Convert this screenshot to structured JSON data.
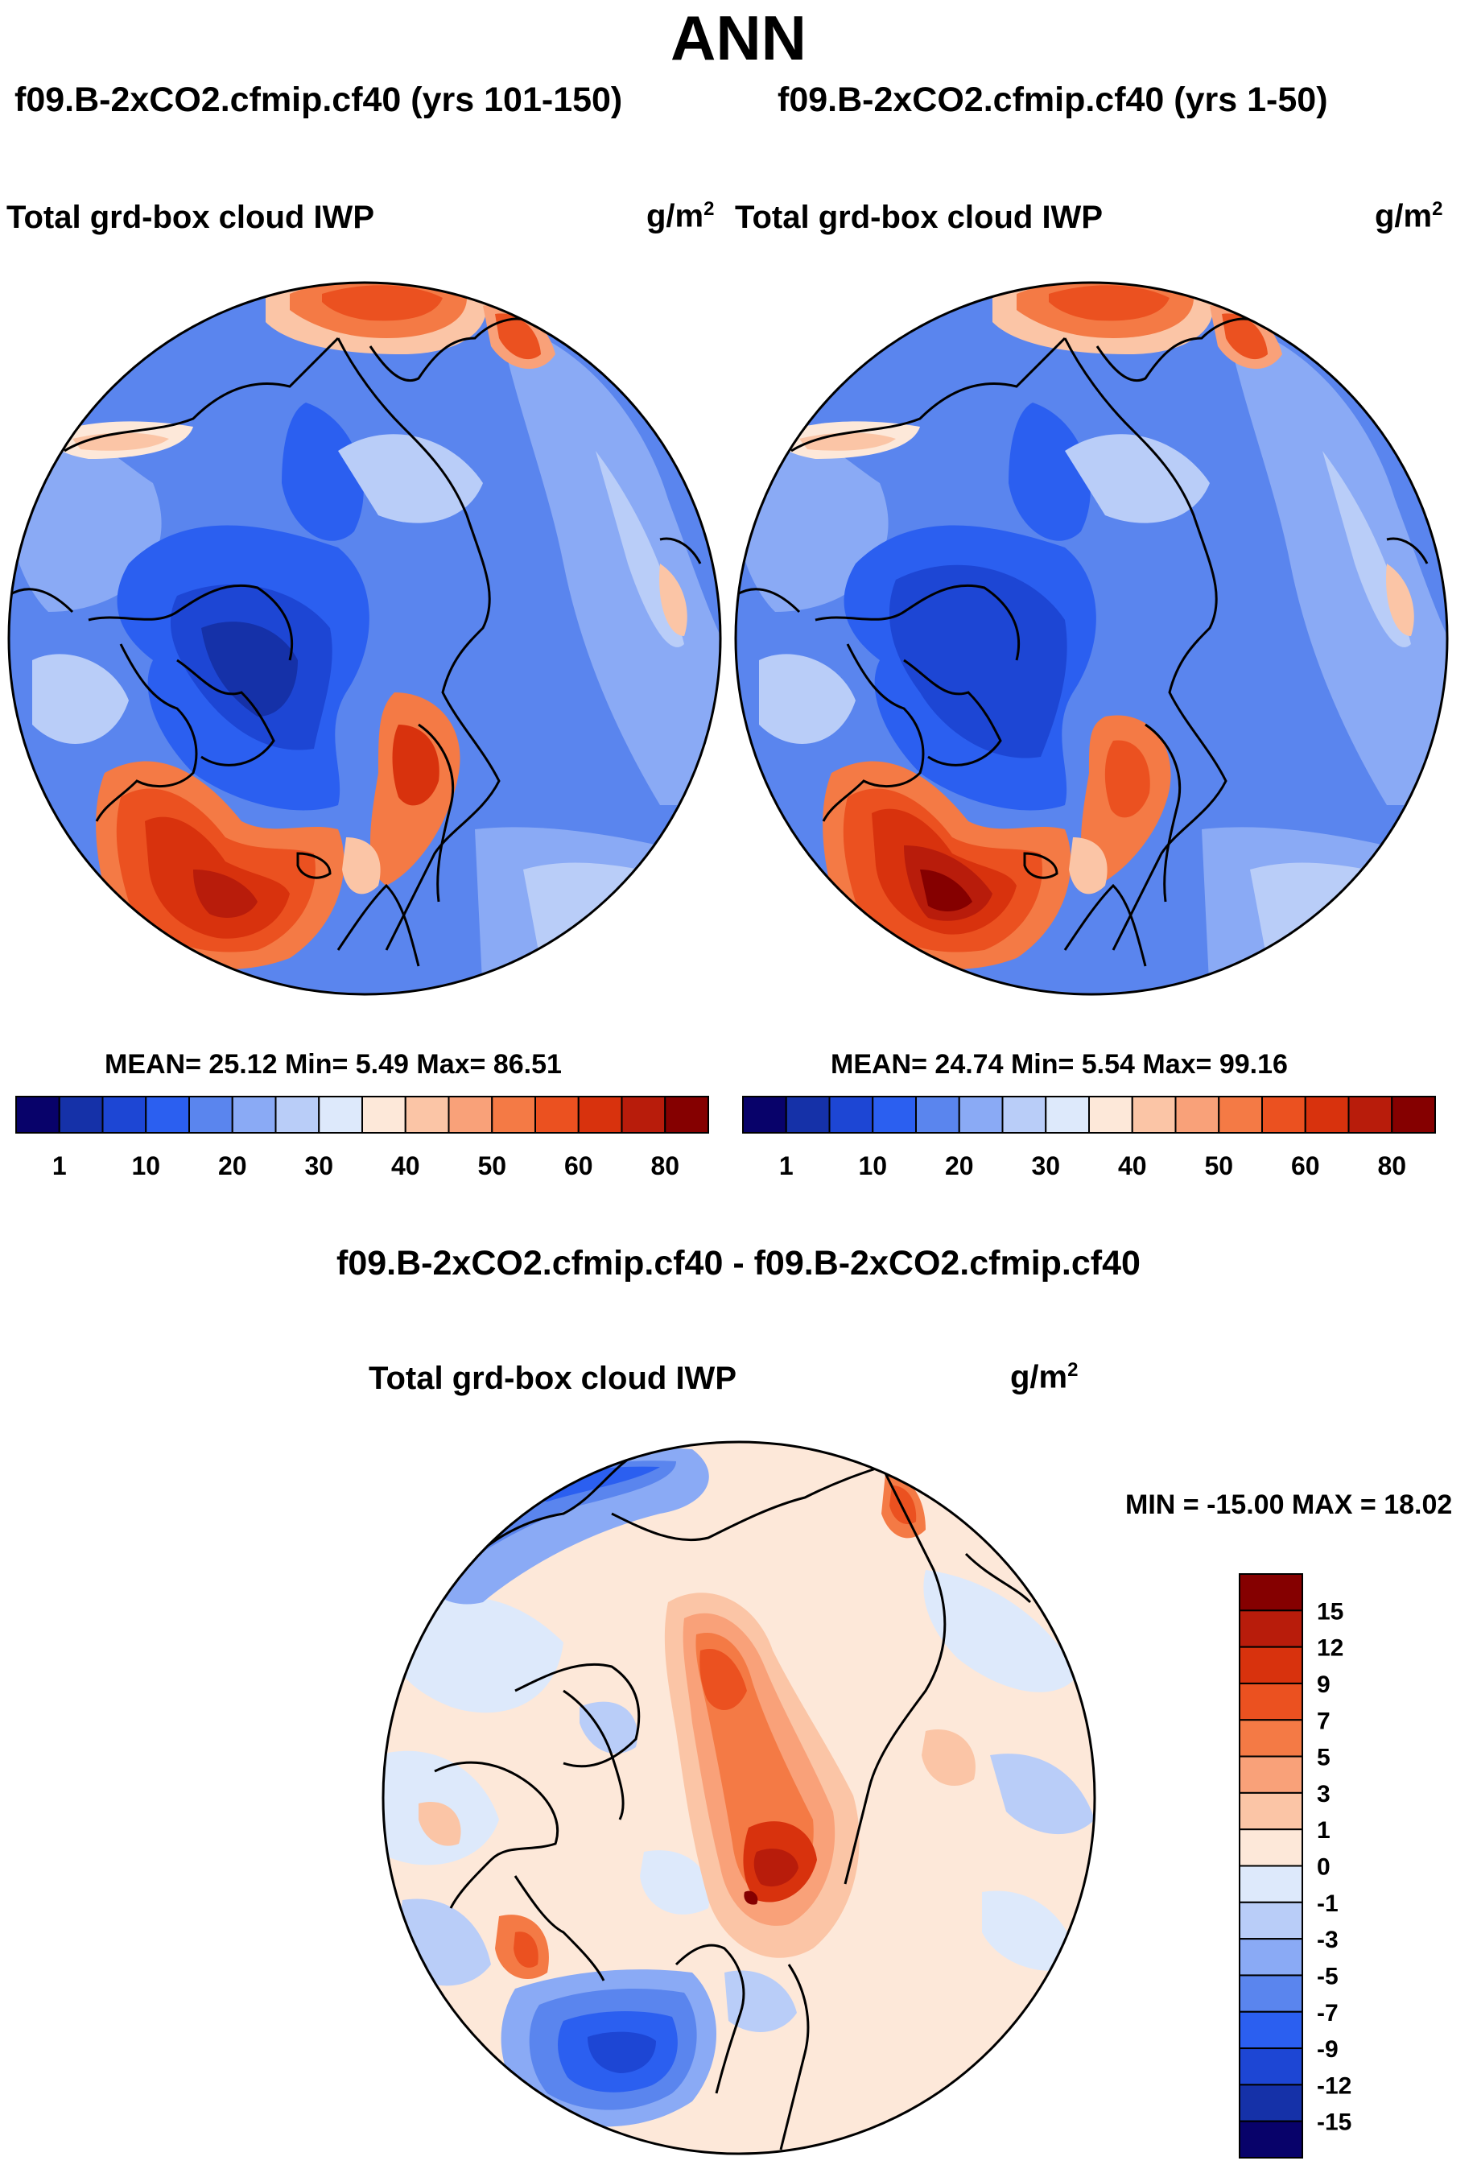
{
  "figure": {
    "title": "ANN",
    "variable": "Total grd-box cloud IWP",
    "units_base": "g/m",
    "units_exp": "2"
  },
  "colors": {
    "abs_scale": [
      "#08026a",
      "#1531a8",
      "#1d46d4",
      "#2b5ff0",
      "#5a85ee",
      "#8aaaf5",
      "#b9cdf8",
      "#dde9fb",
      "#fde8d9",
      "#fbc5a6",
      "#f9a179",
      "#f47a45",
      "#eb5120",
      "#d8320d",
      "#b81c0b",
      "#850000"
    ],
    "diff_scale": [
      "#08026a",
      "#1531a8",
      "#1d46d4",
      "#2b5ff0",
      "#5a85ee",
      "#8aaaf5",
      "#b9cdf8",
      "#dde9fb",
      "#fde8d9",
      "#fbc5a6",
      "#f9a179",
      "#f47a45",
      "#eb5120",
      "#d8320d",
      "#b81c0b",
      "#850000"
    ],
    "ocean_abs": "#5a85ee",
    "coast": "#000000"
  },
  "chart_data": [
    {
      "type": "heatmap",
      "projection": "north polar stereographic",
      "title": "f09.B-2xCO2.cfmip.cf40 (yrs 101-150)",
      "field": "Total grd-box cloud IWP",
      "stats_text": "MEAN=  25.12  Min=   5.49  Max=  86.51",
      "mean": 25.12,
      "min": 5.49,
      "max": 86.51,
      "colorbar_ticks": [
        "1",
        "10",
        "20",
        "30",
        "40",
        "50",
        "60",
        "80"
      ]
    },
    {
      "type": "heatmap",
      "projection": "north polar stereographic",
      "title": "f09.B-2xCO2.cfmip.cf40 (yrs 1-50)",
      "field": "Total grd-box cloud IWP",
      "stats_text": "MEAN=  24.74  Min=   5.54  Max=  99.16",
      "mean": 24.74,
      "min": 5.54,
      "max": 99.16,
      "colorbar_ticks": [
        "1",
        "10",
        "20",
        "30",
        "40",
        "50",
        "60",
        "80"
      ]
    },
    {
      "type": "heatmap",
      "projection": "north polar stereographic",
      "title": "f09.B-2xCO2.cfmip.cf40 - f09.B-2xCO2.cfmip.cf40",
      "field": "Total grd-box cloud IWP",
      "stats_text": "MIN = -15.00 MAX =  18.02",
      "min": -15.0,
      "max": 18.02,
      "colorbar_ticks": [
        "15",
        "12",
        "9",
        "7",
        "5",
        "3",
        "1",
        "0",
        "-1",
        "-3",
        "-5",
        "-7",
        "-9",
        "-12",
        "-15"
      ]
    }
  ]
}
